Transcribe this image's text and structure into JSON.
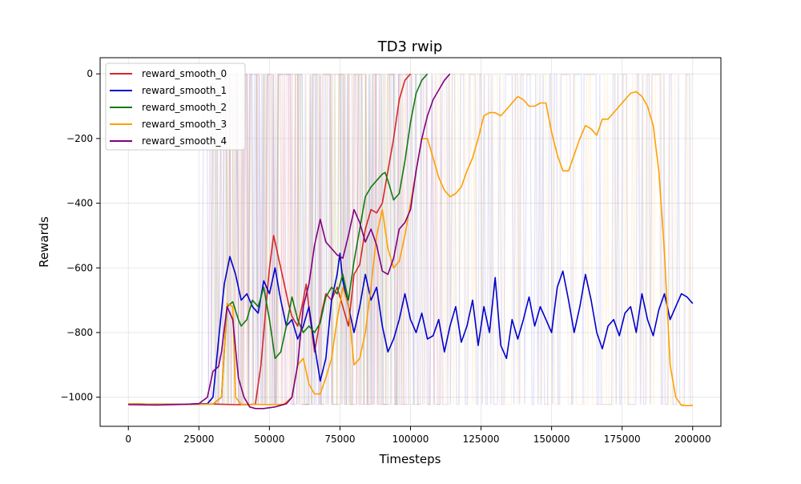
{
  "chart_data": {
    "type": "line",
    "title": "TD3 rwip",
    "xlabel": "Timesteps",
    "ylabel": "Rewards",
    "xlim": [
      -10000,
      210000
    ],
    "ylim": [
      -1090,
      50
    ],
    "xticks": [
      0,
      25000,
      50000,
      75000,
      100000,
      125000,
      150000,
      175000,
      200000
    ],
    "xtick_labels": [
      "0",
      "25000",
      "50000",
      "75000",
      "100000",
      "125000",
      "150000",
      "175000",
      "200000"
    ],
    "yticks": [
      -1000,
      -800,
      -600,
      -400,
      -200,
      0
    ],
    "ytick_labels": [
      "−1000",
      "−800",
      "−600",
      "−400",
      "−200",
      "0"
    ],
    "grid": true,
    "legend_position": "upper-left",
    "colors": {
      "reward_smooth_0": "#d62728",
      "reward_smooth_1": "#0000cc",
      "reward_smooth_2": "#107a10",
      "reward_smooth_3": "#ff9f00",
      "reward_smooth_4": "#800080"
    },
    "series": [
      {
        "name": "reward_smooth_0",
        "color": "#d62728",
        "raw_range": [
          30000,
          100000
        ],
        "x": [
          0,
          10000,
          20000,
          30000,
          38000,
          42000,
          45000,
          47000,
          49000,
          50000,
          51500,
          53000,
          55000,
          57000,
          58000,
          60000,
          62000,
          63000,
          64500,
          66000,
          68000,
          70000,
          72000,
          74000,
          76000,
          78000,
          80000,
          82000,
          84000,
          86000,
          88000,
          90000,
          92000,
          94000,
          96000,
          98000,
          100000
        ],
        "y": [
          -1020,
          -1022,
          -1022,
          -1021,
          -1023,
          -1023,
          -1022,
          -900,
          -700,
          -600,
          -500,
          -560,
          -640,
          -720,
          -750,
          -780,
          -700,
          -650,
          -760,
          -860,
          -760,
          -680,
          -700,
          -660,
          -720,
          -780,
          -620,
          -590,
          -480,
          -420,
          -430,
          -400,
          -300,
          -200,
          -80,
          -20,
          0
        ]
      },
      {
        "name": "reward_smooth_1",
        "color": "#0000cc",
        "raw_range": [
          26000,
          200000
        ],
        "x": [
          0,
          10000,
          20000,
          25000,
          28000,
          30000,
          32000,
          34000,
          36000,
          38000,
          40000,
          42000,
          44000,
          46000,
          48000,
          50000,
          52000,
          54000,
          56000,
          58000,
          60000,
          62000,
          64000,
          66000,
          68000,
          70000,
          72000,
          74000,
          75000,
          76000,
          78000,
          80000,
          82000,
          84000,
          86000,
          88000,
          90000,
          92000,
          94000,
          96000,
          98000,
          100000,
          102000,
          104000,
          106000,
          108000,
          110000,
          112000,
          114000,
          116000,
          118000,
          120000,
          122000,
          124000,
          126000,
          128000,
          130000,
          132000,
          134000,
          136000,
          138000,
          140000,
          142000,
          144000,
          146000,
          148000,
          150000,
          152000,
          154000,
          156000,
          158000,
          160000,
          162000,
          164000,
          166000,
          168000,
          170000,
          172000,
          174000,
          176000,
          178000,
          180000,
          182000,
          184000,
          186000,
          188000,
          190000,
          192000,
          194000,
          196000,
          198000,
          200000
        ],
        "y": [
          -1022,
          -1023,
          -1022,
          -1020,
          -1020,
          -1000,
          -820,
          -650,
          -565,
          -620,
          -700,
          -680,
          -720,
          -740,
          -640,
          -680,
          -600,
          -700,
          -780,
          -760,
          -820,
          -780,
          -720,
          -840,
          -950,
          -880,
          -700,
          -620,
          -555,
          -640,
          -720,
          -800,
          -720,
          -620,
          -700,
          -660,
          -780,
          -860,
          -820,
          -760,
          -680,
          -760,
          -800,
          -740,
          -820,
          -810,
          -760,
          -860,
          -780,
          -720,
          -830,
          -780,
          -700,
          -840,
          -720,
          -800,
          -630,
          -840,
          -880,
          -760,
          -820,
          -760,
          -690,
          -780,
          -720,
          -760,
          -800,
          -660,
          -610,
          -700,
          -800,
          -720,
          -620,
          -700,
          -800,
          -850,
          -780,
          -760,
          -810,
          -740,
          -720,
          -800,
          -680,
          -760,
          -810,
          -730,
          -680,
          -760,
          -720,
          -680,
          -690,
          -710
        ]
      },
      {
        "name": "reward_smooth_2",
        "color": "#107a10",
        "raw_range": [
          30000,
          105000
        ],
        "x": [
          0,
          10000,
          20000,
          30000,
          33000,
          35000,
          37000,
          39000,
          40000,
          42000,
          44000,
          46000,
          48000,
          50000,
          52000,
          54000,
          56000,
          58000,
          60000,
          62000,
          64000,
          66000,
          68000,
          70000,
          72000,
          74000,
          76000,
          78000,
          80000,
          82000,
          84000,
          86000,
          88000,
          90000,
          91000,
          92000,
          94000,
          96000,
          98000,
          100000,
          102000,
          104000,
          106000
        ],
        "y": [
          -1020,
          -1022,
          -1022,
          -1021,
          -1000,
          -720,
          -705,
          -760,
          -780,
          -760,
          -700,
          -720,
          -660,
          -760,
          -880,
          -860,
          -780,
          -690,
          -760,
          -800,
          -780,
          -800,
          -770,
          -690,
          -660,
          -680,
          -620,
          -700,
          -580,
          -480,
          -380,
          -350,
          -330,
          -310,
          -305,
          -330,
          -390,
          -370,
          -270,
          -150,
          -60,
          -20,
          0
        ]
      },
      {
        "name": "reward_smooth_3",
        "color": "#ff9f00",
        "raw_range": [
          30000,
          200000
        ],
        "x": [
          0,
          10000,
          20000,
          30000,
          33000,
          35000,
          37000,
          38000,
          40000,
          44000,
          50000,
          55000,
          58000,
          60000,
          62000,
          64000,
          66000,
          68000,
          70000,
          72000,
          74000,
          76000,
          78000,
          80000,
          82000,
          84000,
          86000,
          88000,
          90000,
          92000,
          94000,
          96000,
          98000,
          100000,
          102000,
          104000,
          106000,
          108000,
          110000,
          112000,
          114000,
          116000,
          118000,
          120000,
          122000,
          124000,
          126000,
          128000,
          130000,
          132000,
          134000,
          136000,
          138000,
          140000,
          142000,
          144000,
          146000,
          148000,
          150000,
          152000,
          154000,
          156000,
          158000,
          160000,
          162000,
          164000,
          166000,
          168000,
          170000,
          172000,
          174000,
          176000,
          178000,
          180000,
          182000,
          184000,
          186000,
          188000,
          190000,
          192000,
          194000,
          196000,
          198000,
          200000
        ],
        "y": [
          -1020,
          -1022,
          -1022,
          -1021,
          -1000,
          -710,
          -720,
          -1000,
          -1022,
          -1022,
          -1023,
          -1022,
          -1000,
          -900,
          -880,
          -960,
          -990,
          -990,
          -940,
          -880,
          -760,
          -660,
          -720,
          -900,
          -880,
          -800,
          -660,
          -500,
          -420,
          -540,
          -600,
          -580,
          -500,
          -400,
          -300,
          -200,
          -200,
          -260,
          -320,
          -360,
          -380,
          -370,
          -350,
          -300,
          -260,
          -200,
          -130,
          -120,
          -120,
          -130,
          -110,
          -90,
          -70,
          -80,
          -100,
          -100,
          -90,
          -90,
          -180,
          -250,
          -300,
          -300,
          -250,
          -200,
          -160,
          -170,
          -190,
          -140,
          -140,
          -120,
          -100,
          -80,
          -60,
          -55,
          -70,
          -100,
          -160,
          -300,
          -550,
          -900,
          -1000,
          -1025,
          -1026,
          -1026
        ]
      },
      {
        "name": "reward_smooth_4",
        "color": "#800080",
        "raw_range": [
          26000,
          114000
        ],
        "x": [
          0,
          10000,
          20000,
          25000,
          28000,
          30000,
          32000,
          33000,
          35000,
          37000,
          39000,
          41000,
          43000,
          45000,
          48000,
          52000,
          56000,
          58000,
          60000,
          62000,
          64000,
          66000,
          68000,
          70000,
          72000,
          74000,
          76000,
          78000,
          80000,
          82000,
          84000,
          86000,
          88000,
          90000,
          92000,
          94000,
          96000,
          98000,
          100000,
          102000,
          104000,
          106000,
          108000,
          110000,
          112000,
          114000
        ],
        "y": [
          -1023,
          -1024,
          -1022,
          -1020,
          -1000,
          -920,
          -905,
          -860,
          -720,
          -760,
          -940,
          -1000,
          -1030,
          -1035,
          -1035,
          -1030,
          -1020,
          -1000,
          -900,
          -720,
          -650,
          -530,
          -450,
          -520,
          -540,
          -560,
          -570,
          -500,
          -420,
          -460,
          -520,
          -480,
          -530,
          -610,
          -620,
          -570,
          -480,
          -460,
          -420,
          -300,
          -200,
          -130,
          -80,
          -50,
          -20,
          0
        ]
      }
    ]
  }
}
